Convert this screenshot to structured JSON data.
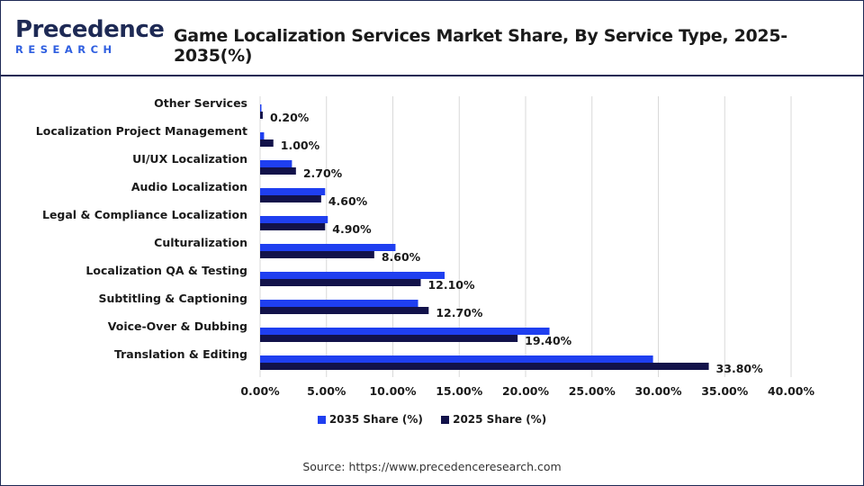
{
  "logo": {
    "top": "Precedence",
    "bottom": "RESEARCH"
  },
  "header": {
    "title": "Game Localization Services Market Share, By Service Type, 2025-2035(%)"
  },
  "colors": {
    "series2035": "#1f3ff0",
    "series2025": "#12124a",
    "grid": "#d9d9d9",
    "brand": "#1e2a55"
  },
  "source": "Source: https://www.precedenceresearch.com",
  "chart_data": {
    "type": "bar",
    "orientation": "horizontal",
    "categories": [
      "Other Services",
      "Localization Project Management",
      "UI/UX Localization",
      "Audio Localization",
      "Legal & Compliance Localization",
      "Culturalization",
      "Localization QA & Testing",
      "Subtitling & Captioning",
      "Voice-Over & Dubbing",
      "Translation & Editing"
    ],
    "series": [
      {
        "name": "2035 Share (%)",
        "values": [
          0.1,
          0.3,
          2.4,
          4.9,
          5.1,
          10.2,
          13.9,
          11.9,
          21.8,
          29.6
        ]
      },
      {
        "name": "2025 Share (%)",
        "values": [
          0.2,
          1.0,
          2.7,
          4.6,
          4.9,
          8.6,
          12.1,
          12.7,
          19.4,
          33.8
        ]
      }
    ],
    "data_labels": [
      "0.20%",
      "1.00%",
      "2.70%",
      "4.60%",
      "4.90%",
      "8.60%",
      "12.10%",
      "12.70%",
      "19.40%",
      "33.80%"
    ],
    "xticks": [
      "0.00%",
      "5.00%",
      "10.00%",
      "15.00%",
      "20.00%",
      "25.00%",
      "30.00%",
      "35.00%",
      "40.00%"
    ],
    "xlim": [
      0,
      40
    ],
    "grid": true,
    "legend_position": "bottom"
  }
}
